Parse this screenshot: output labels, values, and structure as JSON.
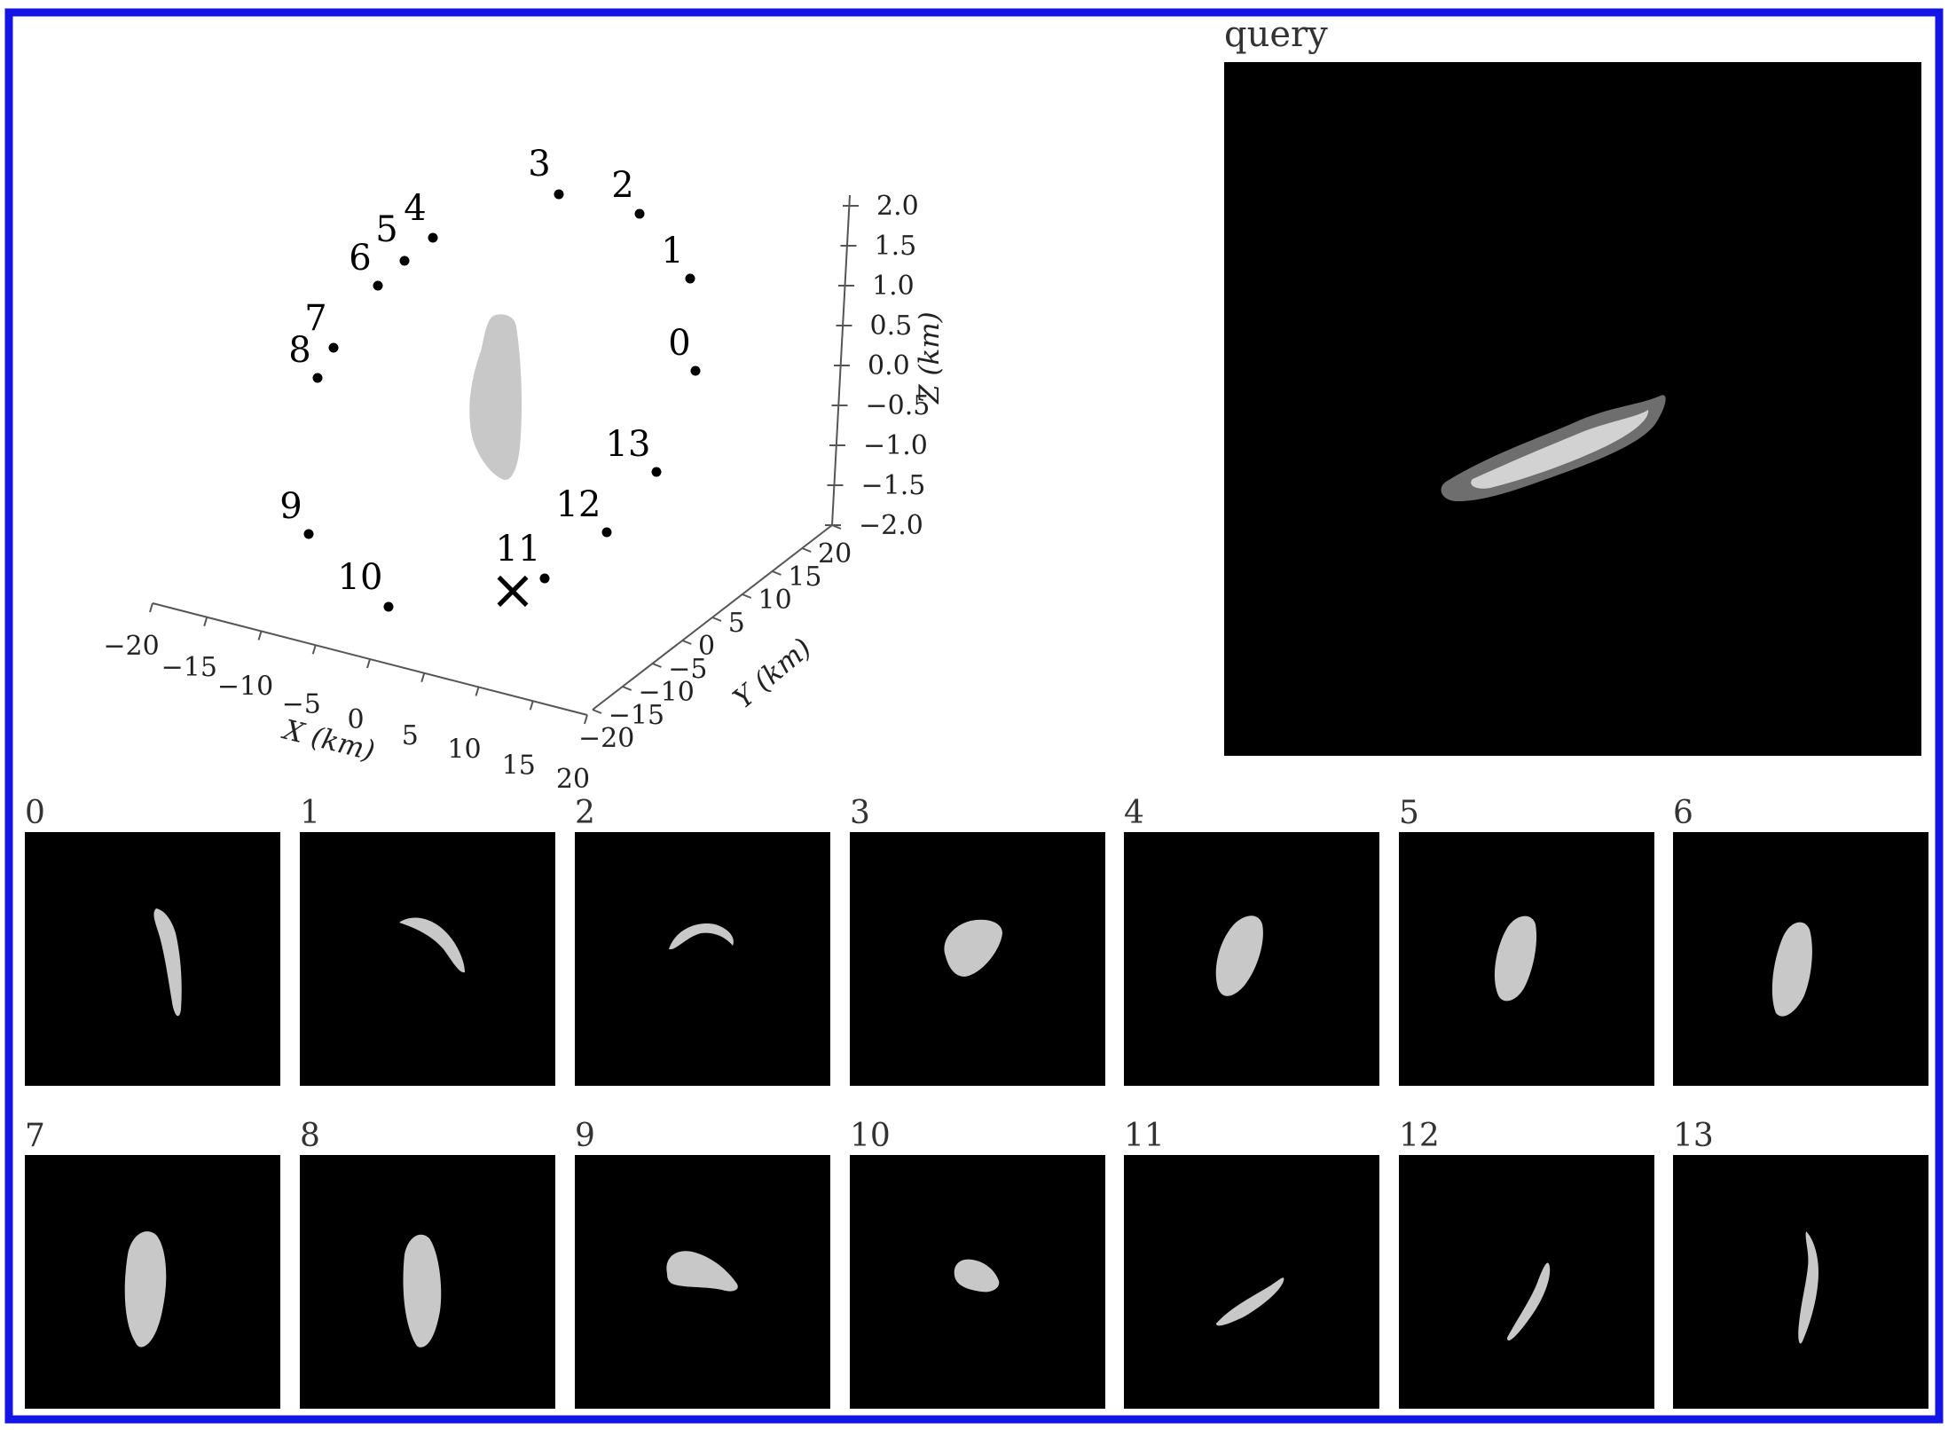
{
  "query_title": "query",
  "x_axis": {
    "label": "X (km)",
    "ticks": [
      "−20",
      "−15",
      "−10",
      "−5",
      "0",
      "5",
      "10",
      "15",
      "20"
    ]
  },
  "y_axis": {
    "label": "Y (km)",
    "ticks": [
      "−20",
      "−15",
      "−10",
      "−5",
      "0",
      "5",
      "10",
      "15",
      "20"
    ]
  },
  "z_axis": {
    "label": "Z (km)",
    "ticks": [
      "2.0",
      "1.5",
      "1.0",
      "0.5",
      "0.0",
      "−0.5",
      "−1.0",
      "−1.5",
      "−2.0"
    ]
  },
  "viewpoint_labels": [
    "0",
    "1",
    "2",
    "3",
    "4",
    "5",
    "6",
    "7",
    "8",
    "9",
    "10",
    "11",
    "12",
    "13"
  ],
  "query_marker": "×",
  "view_panels": [
    "0",
    "1",
    "2",
    "3",
    "4",
    "5",
    "6",
    "7",
    "8",
    "9",
    "10",
    "11",
    "12",
    "13"
  ]
}
